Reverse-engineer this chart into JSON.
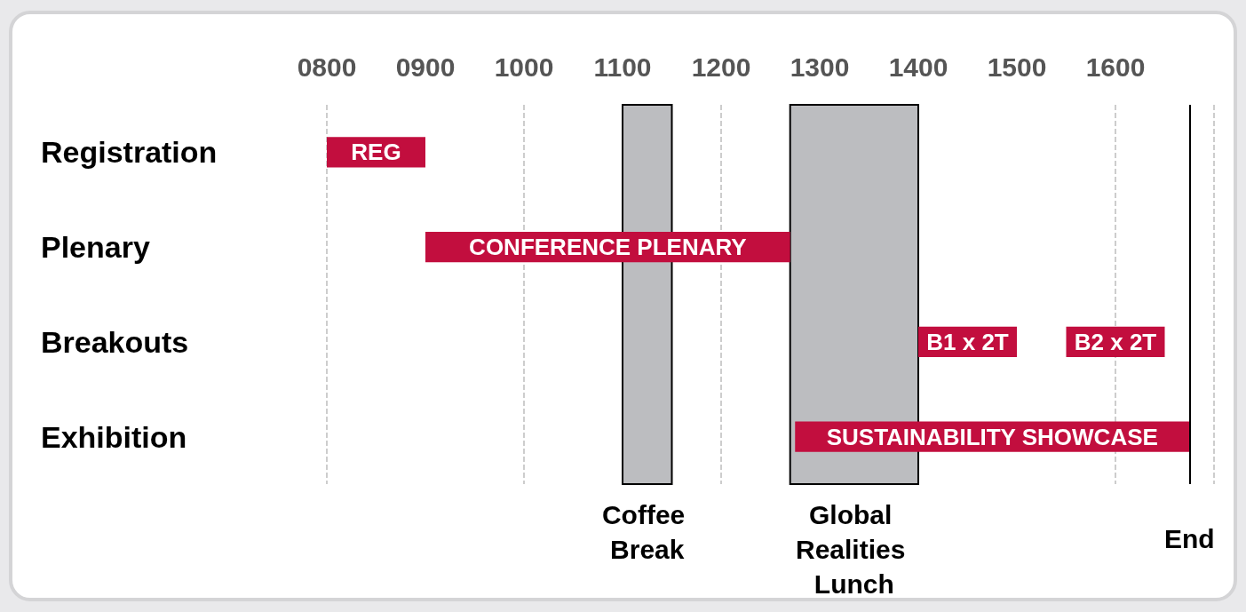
{
  "chart_data": {
    "type": "bar",
    "orientation": "horizontal",
    "categories": [
      "Registration",
      "Plenary",
      "Breakouts",
      "Exhibition"
    ],
    "series": [
      {
        "color": "#c20e3e",
        "values": [
          100,
          370,
          100,
          400
        ],
        "base": [
          800,
          900,
          1400,
          1275
        ],
        "value_labels": [
          "REG",
          "CONFERENCE PLENARY",
          "B1 x 2T",
          "SUSTAINABILITY SHOWCASE"
        ]
      },
      {
        "color": "#c20e3e",
        "values": [
          null,
          null,
          100,
          null
        ],
        "base": [
          null,
          null,
          1550,
          null
        ],
        "value_labels": [
          null,
          null,
          "B2 x 2T",
          null
        ]
      }
    ],
    "xlim": [
      800,
      1700
    ],
    "xticks": [
      {
        "value": 800,
        "label": "0800"
      },
      {
        "value": 900,
        "label": "0900"
      },
      1000,
      1100,
      1200,
      1300,
      1400,
      1500,
      1600
    ],
    "grid": "x",
    "bands": [
      {
        "axis": "x",
        "from": 1100,
        "to": 1150,
        "label": "Coffee Break",
        "color": "#bcbdc0"
      },
      {
        "axis": "x",
        "from": 1270,
        "to": 1400,
        "label": "Global Realities Lunch",
        "color": "#bcbdc0"
      }
    ],
    "ref_lines": [
      {
        "axis": "x",
        "value": 1675,
        "label": "End",
        "color": "#000000"
      }
    ]
  }
}
